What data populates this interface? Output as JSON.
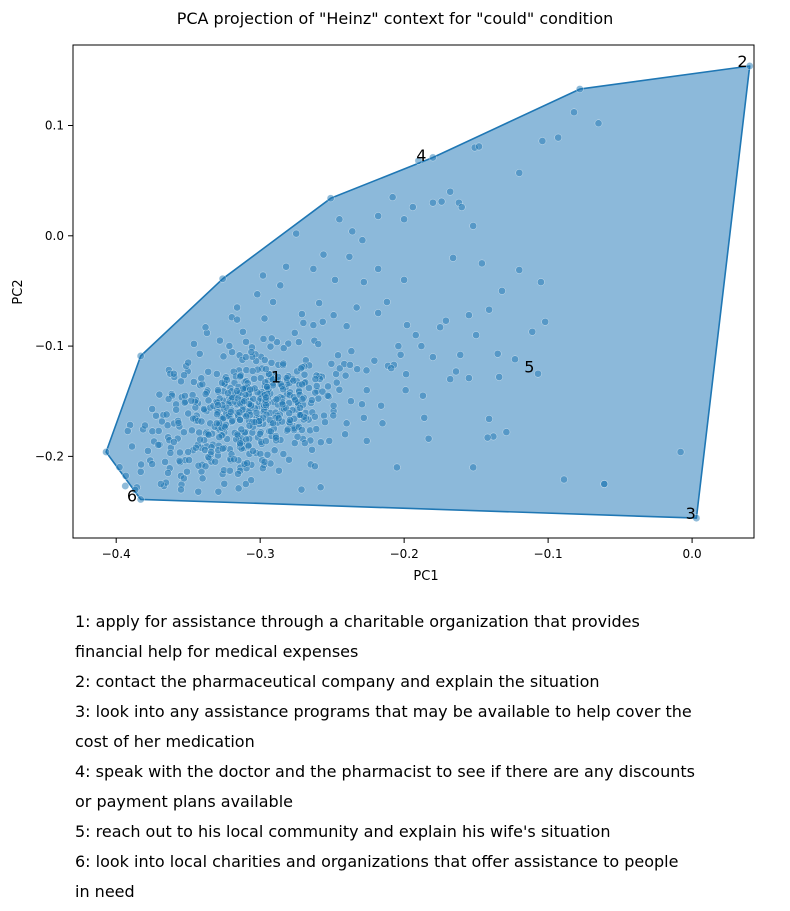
{
  "chart_data": {
    "type": "scatter",
    "title": "PCA projection of \"Heinz\" context for \"could\" condition",
    "xlabel": "PC1",
    "ylabel": "PC2",
    "xlim": [
      -0.43,
      0.043
    ],
    "ylim": [
      -0.274,
      0.173
    ],
    "xticks": [
      -0.4,
      -0.3,
      -0.2,
      -0.1,
      0.0
    ],
    "xtick_labels": [
      "−0.4",
      "−0.3",
      "−0.2",
      "−0.1",
      "0.0"
    ],
    "yticks": [
      0.1,
      0.0,
      -0.1,
      -0.2
    ],
    "ytick_labels": [
      "0.1",
      "0.0",
      "−0.1",
      "−0.2"
    ],
    "grid": false,
    "point_color": "#1f77b4",
    "hull_fill": "#8cb9da",
    "hull_stroke": "#1f77b4",
    "hull": [
      [
        -0.407,
        -0.196
      ],
      [
        -0.383,
        -0.109
      ],
      [
        -0.326,
        -0.039
      ],
      [
        -0.251,
        0.034
      ],
      [
        -0.18,
        0.071
      ],
      [
        -0.078,
        0.133
      ],
      [
        0.04,
        0.154
      ],
      [
        0.003,
        -0.256
      ],
      [
        -0.383,
        -0.239
      ]
    ],
    "labeled_points": [
      {
        "label": "1",
        "x": -0.289,
        "y": -0.128
      },
      {
        "label": "2",
        "x": 0.035,
        "y": 0.158
      },
      {
        "label": "3",
        "x": -0.001,
        "y": -0.252
      },
      {
        "label": "4",
        "x": -0.188,
        "y": 0.073
      },
      {
        "label": "5",
        "x": -0.113,
        "y": -0.119
      },
      {
        "label": "6",
        "x": -0.389,
        "y": -0.236
      }
    ],
    "outlier_points": [
      [
        -0.407,
        -0.196
      ],
      [
        -0.383,
        -0.109
      ],
      [
        -0.326,
        -0.039
      ],
      [
        -0.251,
        0.034
      ],
      [
        -0.18,
        0.071
      ],
      [
        -0.078,
        0.133
      ],
      [
        0.04,
        0.154
      ],
      [
        0.003,
        -0.256
      ],
      [
        -0.383,
        -0.239
      ],
      [
        -0.065,
        0.102
      ],
      [
        -0.082,
        0.112
      ],
      [
        -0.104,
        0.086
      ],
      [
        -0.093,
        0.089
      ],
      [
        -0.151,
        0.08
      ],
      [
        -0.148,
        0.081
      ],
      [
        -0.12,
        0.057
      ],
      [
        -0.19,
        0.068
      ],
      [
        -0.208,
        0.035
      ],
      [
        -0.168,
        0.04
      ],
      [
        -0.162,
        0.03
      ],
      [
        -0.18,
        0.03
      ],
      [
        -0.174,
        0.031
      ],
      [
        -0.194,
        0.026
      ],
      [
        -0.16,
        0.026
      ],
      [
        -0.2,
        0.015
      ],
      [
        -0.152,
        0.009
      ],
      [
        -0.218,
        0.018
      ],
      [
        -0.245,
        0.015
      ],
      [
        -0.275,
        0.002
      ],
      [
        -0.12,
        -0.031
      ],
      [
        -0.105,
        -0.042
      ],
      [
        -0.132,
        -0.05
      ],
      [
        -0.146,
        -0.025
      ],
      [
        -0.166,
        -0.02
      ],
      [
        -0.111,
        -0.087
      ],
      [
        -0.102,
        -0.078
      ],
      [
        -0.141,
        -0.067
      ],
      [
        -0.15,
        -0.09
      ],
      [
        -0.107,
        -0.125
      ],
      [
        -0.123,
        -0.112
      ],
      [
        -0.135,
        -0.107
      ],
      [
        -0.134,
        -0.128
      ],
      [
        -0.155,
        -0.129
      ],
      [
        -0.141,
        -0.166
      ],
      [
        -0.164,
        -0.123
      ],
      [
        -0.18,
        -0.11
      ],
      [
        -0.187,
        -0.145
      ],
      [
        -0.199,
        -0.14
      ],
      [
        -0.186,
        -0.165
      ],
      [
        -0.183,
        -0.184
      ],
      [
        -0.205,
        -0.21
      ],
      [
        -0.216,
        -0.154
      ],
      [
        -0.215,
        -0.17
      ],
      [
        -0.152,
        -0.21
      ],
      [
        -0.129,
        -0.178
      ],
      [
        -0.138,
        -0.182
      ],
      [
        -0.142,
        -0.183
      ],
      [
        -0.061,
        -0.225
      ],
      [
        -0.061,
        -0.225
      ],
      [
        -0.089,
        -0.221
      ],
      [
        -0.008,
        -0.196
      ],
      [
        -0.226,
        -0.186
      ],
      [
        -0.24,
        -0.17
      ],
      [
        -0.255,
        -0.169
      ],
      [
        -0.269,
        -0.188
      ],
      [
        -0.262,
        -0.209
      ],
      [
        -0.258,
        -0.228
      ],
      [
        -0.28,
        -0.203
      ],
      [
        -0.297,
        -0.205
      ],
      [
        -0.287,
        -0.213
      ],
      [
        -0.309,
        -0.206
      ],
      [
        -0.31,
        -0.225
      ],
      [
        -0.315,
        -0.229
      ],
      [
        -0.329,
        -0.232
      ],
      [
        -0.343,
        -0.232
      ],
      [
        -0.34,
        -0.22
      ],
      [
        -0.353,
        -0.22
      ],
      [
        -0.364,
        -0.215
      ],
      [
        -0.378,
        -0.195
      ],
      [
        -0.389,
        -0.191
      ],
      [
        -0.392,
        -0.177
      ],
      [
        -0.375,
        -0.157
      ],
      [
        -0.37,
        -0.144
      ],
      [
        -0.36,
        -0.125
      ],
      [
        -0.35,
        -0.115
      ],
      [
        -0.346,
        -0.098
      ],
      [
        -0.337,
        -0.088
      ],
      [
        -0.338,
        -0.083
      ],
      [
        -0.316,
        -0.076
      ],
      [
        -0.316,
        -0.065
      ],
      [
        -0.291,
        -0.06
      ],
      [
        -0.292,
        -0.093
      ],
      [
        -0.31,
        -0.11
      ],
      [
        -0.276,
        -0.088
      ],
      [
        -0.263,
        -0.081
      ],
      [
        -0.249,
        -0.072
      ],
      [
        -0.233,
        -0.065
      ],
      [
        -0.228,
        -0.042
      ],
      [
        -0.238,
        -0.019
      ],
      [
        -0.263,
        -0.03
      ],
      [
        -0.282,
        -0.028
      ],
      [
        -0.298,
        -0.036
      ],
      [
        -0.302,
        -0.053
      ],
      [
        -0.286,
        -0.045
      ],
      [
        -0.24,
        -0.082
      ],
      [
        -0.218,
        -0.07
      ],
      [
        -0.198,
        -0.081
      ],
      [
        -0.175,
        -0.083
      ],
      [
        -0.171,
        -0.077
      ],
      [
        -0.155,
        -0.072
      ],
      [
        -0.161,
        -0.108
      ],
      [
        -0.168,
        -0.13
      ],
      [
        -0.209,
        -0.12
      ],
      [
        -0.226,
        -0.14
      ],
      [
        -0.237,
        -0.15
      ],
      [
        -0.249,
        -0.154
      ],
      [
        -0.262,
        -0.164
      ],
      [
        -0.271,
        -0.176
      ],
      [
        -0.291,
        -0.17
      ],
      [
        -0.304,
        -0.169
      ],
      [
        -0.308,
        -0.19
      ],
      [
        -0.326,
        -0.193
      ],
      [
        -0.334,
        -0.196
      ],
      [
        -0.35,
        -0.196
      ],
      [
        -0.356,
        -0.204
      ],
      [
        -0.366,
        -0.205
      ],
      [
        -0.375,
        -0.207
      ],
      [
        -0.383,
        -0.214
      ],
      [
        -0.369,
        -0.225
      ],
      [
        -0.355,
        -0.23
      ],
      [
        -0.338,
        -0.209
      ],
      [
        -0.321,
        -0.213
      ],
      [
        -0.305,
        -0.195
      ],
      [
        -0.289,
        -0.183
      ],
      [
        -0.276,
        -0.188
      ],
      [
        -0.264,
        -0.194
      ],
      [
        -0.252,
        -0.186
      ],
      [
        -0.241,
        -0.18
      ],
      [
        -0.228,
        -0.165
      ],
      [
        -0.204,
        -0.1
      ],
      [
        -0.192,
        -0.09
      ],
      [
        -0.188,
        -0.1
      ],
      [
        -0.212,
        -0.06
      ],
      [
        -0.2,
        -0.04
      ],
      [
        -0.218,
        -0.03
      ],
      [
        -0.236,
        0.004
      ],
      [
        -0.229,
        -0.004
      ],
      [
        -0.256,
        -0.017
      ],
      [
        -0.248,
        -0.04
      ],
      [
        -0.259,
        -0.061
      ],
      [
        -0.271,
        -0.071
      ],
      [
        -0.312,
        -0.087
      ],
      [
        -0.328,
        -0.095
      ],
      [
        -0.342,
        -0.107
      ],
      [
        -0.355,
        -0.132
      ],
      [
        -0.365,
        -0.162
      ],
      [
        -0.38,
        -0.172
      ],
      [
        -0.36,
        -0.187
      ]
    ],
    "cluster": {
      "center": [
        -0.315,
        -0.16
      ],
      "spread": [
        0.03,
        0.027
      ],
      "count": 520,
      "seed": 7
    }
  },
  "legend": [
    "1: apply for assistance through a charitable organization that provides",
    "financial help for medical expenses",
    "2: contact the pharmaceutical company and explain the situation",
    "3: look into any assistance programs that may be available to help cover the",
    "cost of her medication",
    "4: speak with the doctor and the pharmacist to see if there are any discounts",
    "or payment plans available",
    "5: reach out to his local community and explain his wife's situation",
    "6: look into local charities and organizations that offer assistance to people",
    "in need"
  ]
}
